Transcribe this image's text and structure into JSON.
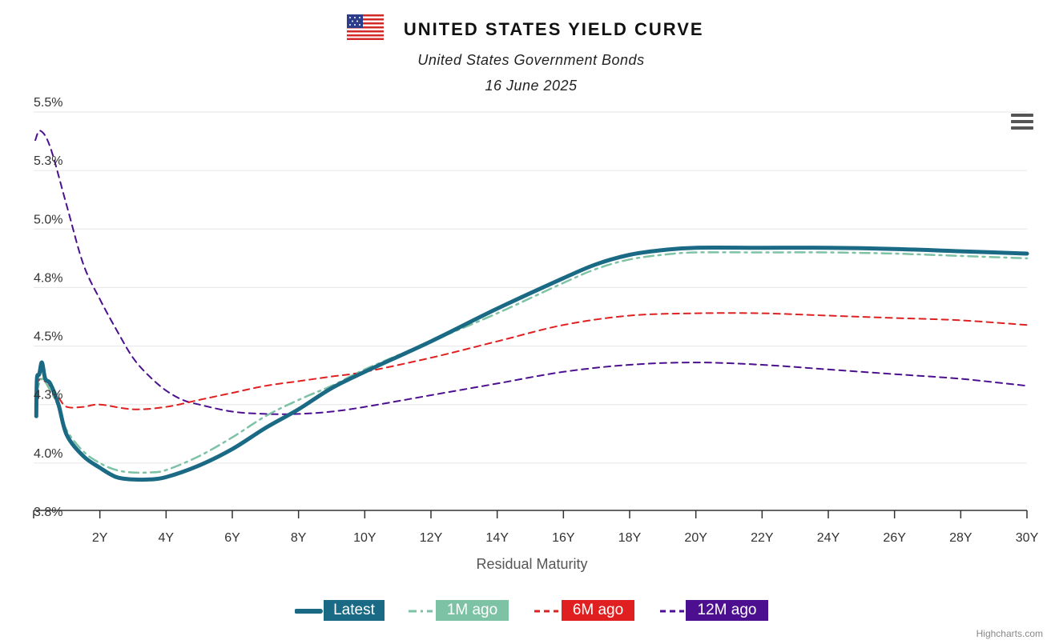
{
  "header": {
    "title": "UNITED STATES YIELD CURVE",
    "subtitle": "United States Government Bonds",
    "date": "16 June 2025",
    "flag_icon": "us-flag-icon"
  },
  "menu_icon": "hamburger-menu-icon",
  "credits": "Highcharts.com",
  "chart_data": {
    "type": "line",
    "title": "UNITED STATES YIELD CURVE",
    "subtitle": "United States Government Bonds",
    "date": "16 June 2025",
    "xlabel": "Residual Maturity",
    "ylabel": "",
    "xlim": [
      0,
      30
    ],
    "ylim": [
      3.75,
      5.5
    ],
    "x_ticks": [
      2,
      4,
      6,
      8,
      10,
      12,
      14,
      16,
      18,
      20,
      22,
      24,
      26,
      28,
      30
    ],
    "x_tick_labels": [
      "2Y",
      "4Y",
      "6Y",
      "8Y",
      "10Y",
      "12Y",
      "14Y",
      "16Y",
      "18Y",
      "20Y",
      "22Y",
      "24Y",
      "26Y",
      "28Y",
      "30Y"
    ],
    "y_ticks": [
      3.75,
      4.0,
      4.25,
      4.5,
      4.75,
      5.0,
      5.25,
      5.5
    ],
    "y_tick_labels": [
      "3.8%",
      "4.0%",
      "4.3%",
      "4.5%",
      "4.8%",
      "5.0%",
      "5.3%",
      "5.5%"
    ],
    "grid": true,
    "legend_position": "bottom-center",
    "series": [
      {
        "name": "Latest",
        "color": "#1a6a85",
        "dash": "solid",
        "points": [
          [
            0.08,
            4.2
          ],
          [
            0.1,
            4.36
          ],
          [
            0.17,
            4.38
          ],
          [
            0.25,
            4.43
          ],
          [
            0.35,
            4.36
          ],
          [
            0.5,
            4.34
          ],
          [
            0.75,
            4.25
          ],
          [
            1,
            4.12
          ],
          [
            1.5,
            4.03
          ],
          [
            2,
            3.98
          ],
          [
            2.5,
            3.94
          ],
          [
            3,
            3.93
          ],
          [
            3.5,
            3.93
          ],
          [
            4,
            3.94
          ],
          [
            5,
            3.99
          ],
          [
            6,
            4.06
          ],
          [
            7,
            4.15
          ],
          [
            8,
            4.23
          ],
          [
            9,
            4.32
          ],
          [
            10,
            4.39
          ],
          [
            12,
            4.52
          ],
          [
            14,
            4.66
          ],
          [
            16,
            4.79
          ],
          [
            17,
            4.85
          ],
          [
            18,
            4.89
          ],
          [
            19,
            4.91
          ],
          [
            20,
            4.92
          ],
          [
            22,
            4.92
          ],
          [
            24,
            4.92
          ],
          [
            26,
            4.915
          ],
          [
            28,
            4.905
          ],
          [
            30,
            4.895
          ]
        ]
      },
      {
        "name": "1M ago",
        "color": "#7ec2a6",
        "dash": "dashdot",
        "points": [
          [
            0.08,
            4.3
          ],
          [
            0.25,
            4.36
          ],
          [
            0.5,
            4.31
          ],
          [
            0.75,
            4.24
          ],
          [
            1,
            4.14
          ],
          [
            1.5,
            4.05
          ],
          [
            2,
            4.0
          ],
          [
            2.5,
            3.97
          ],
          [
            3,
            3.96
          ],
          [
            3.5,
            3.96
          ],
          [
            4,
            3.97
          ],
          [
            5,
            4.03
          ],
          [
            6,
            4.11
          ],
          [
            7,
            4.2
          ],
          [
            8,
            4.27
          ],
          [
            9,
            4.33
          ],
          [
            10,
            4.4
          ],
          [
            12,
            4.52
          ],
          [
            14,
            4.64
          ],
          [
            16,
            4.77
          ],
          [
            17,
            4.83
          ],
          [
            18,
            4.87
          ],
          [
            19,
            4.89
          ],
          [
            20,
            4.9
          ],
          [
            22,
            4.9
          ],
          [
            24,
            4.9
          ],
          [
            26,
            4.895
          ],
          [
            28,
            4.885
          ],
          [
            30,
            4.875
          ]
        ]
      },
      {
        "name": "6M ago",
        "color": "#e02020",
        "dash": "dash",
        "points": [
          [
            0.08,
            4.34
          ],
          [
            0.25,
            4.36
          ],
          [
            0.5,
            4.32
          ],
          [
            0.75,
            4.28
          ],
          [
            1,
            4.24
          ],
          [
            1.5,
            4.24
          ],
          [
            2,
            4.25
          ],
          [
            3,
            4.23
          ],
          [
            4,
            4.24
          ],
          [
            5,
            4.27
          ],
          [
            6,
            4.3
          ],
          [
            7,
            4.33
          ],
          [
            8,
            4.35
          ],
          [
            9,
            4.37
          ],
          [
            10,
            4.39
          ],
          [
            12,
            4.45
          ],
          [
            14,
            4.52
          ],
          [
            16,
            4.59
          ],
          [
            18,
            4.63
          ],
          [
            20,
            4.64
          ],
          [
            22,
            4.64
          ],
          [
            24,
            4.63
          ],
          [
            26,
            4.62
          ],
          [
            28,
            4.61
          ],
          [
            30,
            4.59
          ]
        ]
      },
      {
        "name": "12M ago",
        "color": "#4b0f8f",
        "dash": "dash",
        "points": [
          [
            0.05,
            5.38
          ],
          [
            0.2,
            5.42
          ],
          [
            0.5,
            5.35
          ],
          [
            1,
            5.1
          ],
          [
            1.5,
            4.85
          ],
          [
            2,
            4.7
          ],
          [
            2.5,
            4.57
          ],
          [
            3,
            4.45
          ],
          [
            3.5,
            4.37
          ],
          [
            4,
            4.31
          ],
          [
            4.5,
            4.27
          ],
          [
            5,
            4.25
          ],
          [
            6,
            4.22
          ],
          [
            7,
            4.21
          ],
          [
            8,
            4.21
          ],
          [
            9,
            4.22
          ],
          [
            10,
            4.24
          ],
          [
            12,
            4.29
          ],
          [
            14,
            4.34
          ],
          [
            16,
            4.39
          ],
          [
            18,
            4.42
          ],
          [
            20,
            4.43
          ],
          [
            22,
            4.42
          ],
          [
            24,
            4.4
          ],
          [
            26,
            4.38
          ],
          [
            28,
            4.36
          ],
          [
            30,
            4.33
          ]
        ]
      }
    ]
  }
}
